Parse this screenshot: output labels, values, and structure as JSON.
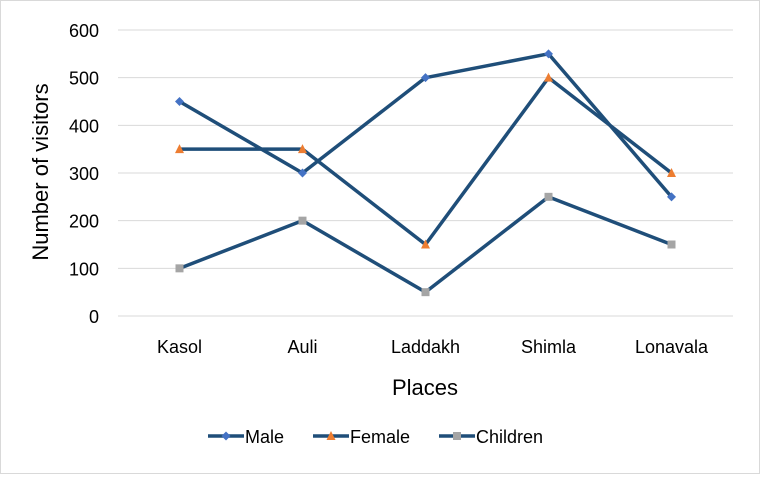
{
  "chart_data": {
    "type": "line",
    "title": "",
    "xlabel": "Places",
    "ylabel": "Number of visitors",
    "categories": [
      "Kasol",
      "Auli",
      "Laddakh",
      "Shimla",
      "Lonavala"
    ],
    "ylim": [
      0,
      600
    ],
    "yticks": [
      "0",
      "100",
      "200",
      "300",
      "400",
      "500",
      "600"
    ],
    "grid": true,
    "legend_position": "bottom",
    "line_color": "#1f4e79",
    "series": [
      {
        "name": "Male",
        "values": [
          450,
          300,
          500,
          550,
          250
        ],
        "marker": "diamond",
        "marker_color": "#4472c4"
      },
      {
        "name": "Female",
        "values": [
          350,
          350,
          150,
          500,
          300
        ],
        "marker": "triangle",
        "marker_color": "#ed7d31"
      },
      {
        "name": "Children",
        "values": [
          100,
          200,
          50,
          250,
          150
        ],
        "marker": "square",
        "marker_color": "#a5a5a5"
      }
    ]
  }
}
